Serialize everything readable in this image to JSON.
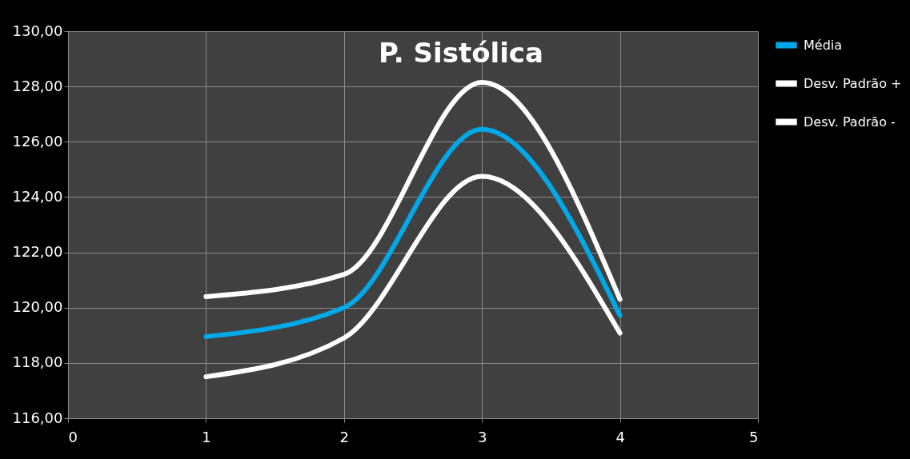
{
  "chart_data": {
    "type": "line",
    "title": "P. Sistólica",
    "x": [
      1,
      2,
      3,
      4
    ],
    "series": [
      {
        "name": "Média",
        "color": "#00a8e8",
        "values": [
          118.95,
          120.0,
          126.45,
          119.72
        ]
      },
      {
        "name": "Desv. Padrão +",
        "color": "#ffffff",
        "values": [
          120.4,
          121.2,
          128.15,
          120.3
        ]
      },
      {
        "name": "Desv. Padrão -",
        "color": "#ffffff",
        "values": [
          117.5,
          118.9,
          124.75,
          119.08
        ]
      }
    ],
    "xlim": [
      0,
      5
    ],
    "xticks": [
      0,
      1,
      2,
      3,
      4,
      5
    ],
    "ylim": [
      116,
      130
    ],
    "yticks": [
      {
        "value": 116,
        "label": "116,00"
      },
      {
        "value": 118,
        "label": "118,00"
      },
      {
        "value": 120,
        "label": "120,00"
      },
      {
        "value": 122,
        "label": "122,00"
      },
      {
        "value": 124,
        "label": "124,00"
      },
      {
        "value": 126,
        "label": "126,00"
      },
      {
        "value": 128,
        "label": "128,00"
      },
      {
        "value": 130,
        "label": "130,00"
      }
    ],
    "grid": true,
    "legend": "right",
    "marker": "none",
    "line_style": "solid"
  }
}
